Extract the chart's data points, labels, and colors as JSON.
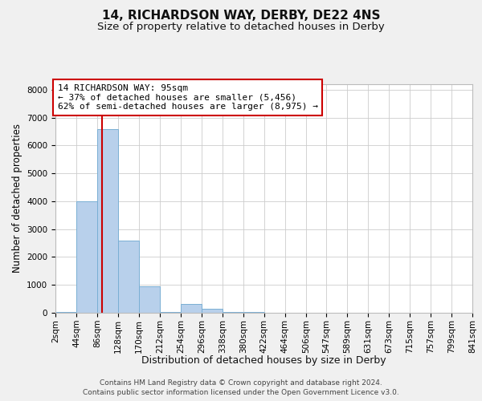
{
  "title": "14, RICHARDSON WAY, DERBY, DE22 4NS",
  "subtitle": "Size of property relative to detached houses in Derby",
  "xlabel": "Distribution of detached houses by size in Derby",
  "ylabel": "Number of detached properties",
  "annotation_line1": "14 RICHARDSON WAY: 95sqm",
  "annotation_line2": "← 37% of detached houses are smaller (5,456)",
  "annotation_line3": "62% of semi-detached houses are larger (8,975) →",
  "footer_line1": "Contains HM Land Registry data © Crown copyright and database right 2024.",
  "footer_line2": "Contains public sector information licensed under the Open Government Licence v3.0.",
  "bin_edges": [
    2,
    44,
    86,
    128,
    170,
    212,
    254,
    296,
    338,
    380,
    422,
    464,
    506,
    547,
    589,
    631,
    673,
    715,
    757,
    799,
    841
  ],
  "bar_heights": [
    30,
    4000,
    6600,
    2600,
    950,
    30,
    320,
    150,
    20,
    20,
    8,
    5,
    4,
    4,
    4,
    4,
    4,
    4,
    4,
    4
  ],
  "bar_color": "#b8d0eb",
  "bar_edge_color": "#7aafd4",
  "property_line_x": 95,
  "property_line_color": "#cc0000",
  "ylim": [
    0,
    8200
  ],
  "yticks": [
    0,
    1000,
    2000,
    3000,
    4000,
    5000,
    6000,
    7000,
    8000
  ],
  "background_color": "#f0f0f0",
  "plot_background_color": "#ffffff",
  "grid_color": "#cccccc",
  "annotation_box_color": "#ffffff",
  "annotation_box_edge": "#cc0000",
  "title_fontsize": 11,
  "subtitle_fontsize": 9.5,
  "ylabel_fontsize": 8.5,
  "xlabel_fontsize": 9,
  "tick_fontsize": 7.5,
  "annotation_fontsize": 8,
  "footer_fontsize": 6.5
}
